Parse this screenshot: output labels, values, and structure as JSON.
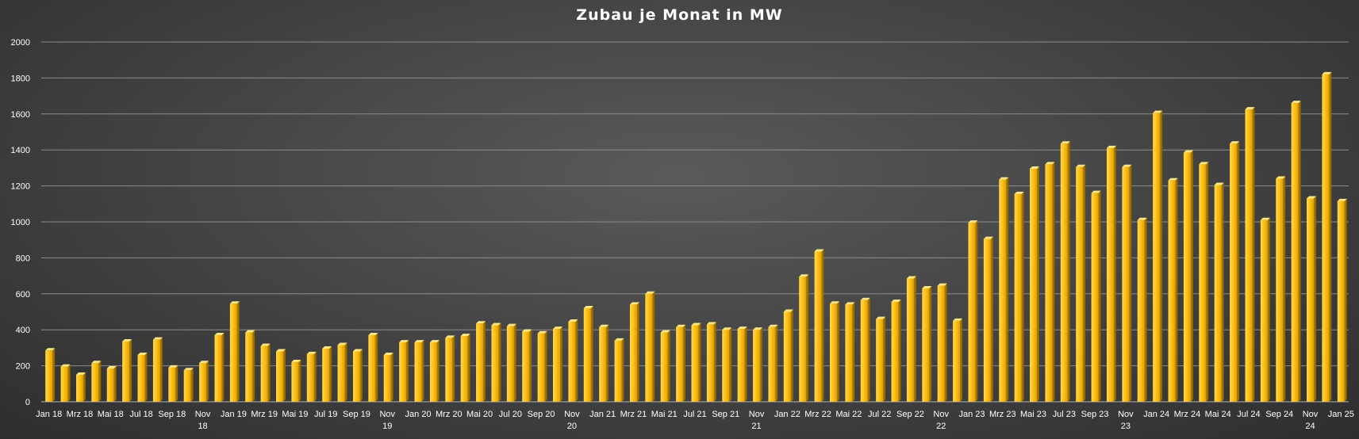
{
  "chart_data": {
    "type": "bar",
    "title": "Zubau je Monat in MW",
    "xlabel": "",
    "ylabel": "",
    "ylim": [
      0,
      2000
    ],
    "yticks": [
      0,
      200,
      400,
      600,
      800,
      1000,
      1200,
      1400,
      1600,
      1800,
      2000
    ],
    "grid": true,
    "legend": "none",
    "bar_color": "#f5b800",
    "categories": [
      "Jan 18",
      "Feb 18",
      "Mrz 18",
      "Apr 18",
      "Mai 18",
      "Jun 18",
      "Jul 18",
      "Aug 18",
      "Sep 18",
      "Okt 18",
      "Nov 18",
      "Dez 18",
      "Jan 19",
      "Feb 19",
      "Mrz 19",
      "Apr 19",
      "Mai 19",
      "Jun 19",
      "Jul 19",
      "Aug 19",
      "Sep 19",
      "Okt 19",
      "Nov 19",
      "Dez 19",
      "Jan 20",
      "Feb 20",
      "Mrz 20",
      "Apr 20",
      "Mai 20",
      "Jun 20",
      "Jul 20",
      "Aug 20",
      "Sep 20",
      "Okt 20",
      "Nov 20",
      "Dez 20",
      "Jan 21",
      "Feb 21",
      "Mrz 21",
      "Apr 21",
      "Mai 21",
      "Jun 21",
      "Jul 21",
      "Aug 21",
      "Sep 21",
      "Okt 21",
      "Nov 21",
      "Dez 21",
      "Jan 22",
      "Feb 22",
      "Mrz 22",
      "Apr 22",
      "Mai 22",
      "Jun 22",
      "Jul 22",
      "Aug 22",
      "Sep 22",
      "Okt 22",
      "Nov 22",
      "Dez 22",
      "Jan 23",
      "Feb 23",
      "Mrz 23",
      "Apr 23",
      "Mai 23",
      "Jun 23",
      "Jul 23",
      "Aug 23",
      "Sep 23",
      "Okt 23",
      "Nov 23",
      "Dez 23",
      "Jan 24",
      "Feb 24",
      "Mrz 24",
      "Apr 24",
      "Mai 24",
      "Jun 24",
      "Jul 24",
      "Aug 24",
      "Sep 24",
      "Okt 24",
      "Nov 24",
      "Dez 24",
      "Jan 25"
    ],
    "values": [
      285,
      195,
      150,
      215,
      185,
      335,
      260,
      345,
      190,
      175,
      215,
      370,
      545,
      385,
      310,
      280,
      220,
      265,
      295,
      315,
      280,
      370,
      260,
      330,
      330,
      330,
      355,
      365,
      435,
      425,
      420,
      390,
      380,
      405,
      445,
      520,
      415,
      340,
      540,
      600,
      385,
      415,
      425,
      430,
      400,
      405,
      400,
      415,
      500,
      695,
      835,
      545,
      540,
      565,
      460,
      555,
      685,
      630,
      645,
      450,
      995,
      905,
      1235,
      1155,
      1295,
      1320,
      1435,
      1305,
      1160,
      1410,
      1305,
      1010,
      1605,
      1230,
      1385,
      1320,
      1205,
      1435,
      1625,
      1010,
      1240,
      1660,
      1130,
      1820,
      1115
    ],
    "x_tick_labels": [
      {
        "index": 0,
        "label": "Jan 18"
      },
      {
        "index": 2,
        "label": "Mrz 18"
      },
      {
        "index": 4,
        "label": "Mai 18"
      },
      {
        "index": 6,
        "label": "Jul 18"
      },
      {
        "index": 8,
        "label": "Sep 18"
      },
      {
        "index": 10,
        "label": "Nov 18",
        "two_line": true
      },
      {
        "index": 12,
        "label": "Jan 19"
      },
      {
        "index": 14,
        "label": "Mrz 19"
      },
      {
        "index": 16,
        "label": "Mai 19"
      },
      {
        "index": 18,
        "label": "Jul 19"
      },
      {
        "index": 20,
        "label": "Sep 19"
      },
      {
        "index": 22,
        "label": "Nov 19",
        "two_line": true
      },
      {
        "index": 24,
        "label": "Jan 20"
      },
      {
        "index": 26,
        "label": "Mrz 20"
      },
      {
        "index": 28,
        "label": "Mai 20"
      },
      {
        "index": 30,
        "label": "Jul 20"
      },
      {
        "index": 32,
        "label": "Sep 20"
      },
      {
        "index": 34,
        "label": "Nov 20",
        "two_line": true
      },
      {
        "index": 36,
        "label": "Jan 21"
      },
      {
        "index": 38,
        "label": "Mrz 21"
      },
      {
        "index": 40,
        "label": "Mai 21"
      },
      {
        "index": 42,
        "label": "Jul 21"
      },
      {
        "index": 44,
        "label": "Sep 21"
      },
      {
        "index": 46,
        "label": "Nov 21",
        "two_line": true
      },
      {
        "index": 48,
        "label": "Jan 22"
      },
      {
        "index": 50,
        "label": "Mrz 22"
      },
      {
        "index": 52,
        "label": "Mai 22"
      },
      {
        "index": 54,
        "label": "Jul 22"
      },
      {
        "index": 56,
        "label": "Sep 22"
      },
      {
        "index": 58,
        "label": "Nov 22",
        "two_line": true
      },
      {
        "index": 60,
        "label": "Jan 23"
      },
      {
        "index": 62,
        "label": "Mrz 23"
      },
      {
        "index": 64,
        "label": "Mai 23"
      },
      {
        "index": 66,
        "label": "Jul 23"
      },
      {
        "index": 68,
        "label": "Sep 23"
      },
      {
        "index": 70,
        "label": "Nov 23",
        "two_line": true
      },
      {
        "index": 72,
        "label": "Jan 24"
      },
      {
        "index": 74,
        "label": "Mrz 24"
      },
      {
        "index": 76,
        "label": "Mai 24"
      },
      {
        "index": 78,
        "label": "Jul 24"
      },
      {
        "index": 80,
        "label": "Sep 24"
      },
      {
        "index": 82,
        "label": "Nov 24",
        "two_line": true
      },
      {
        "index": 84,
        "label": "Jan 25"
      }
    ]
  }
}
